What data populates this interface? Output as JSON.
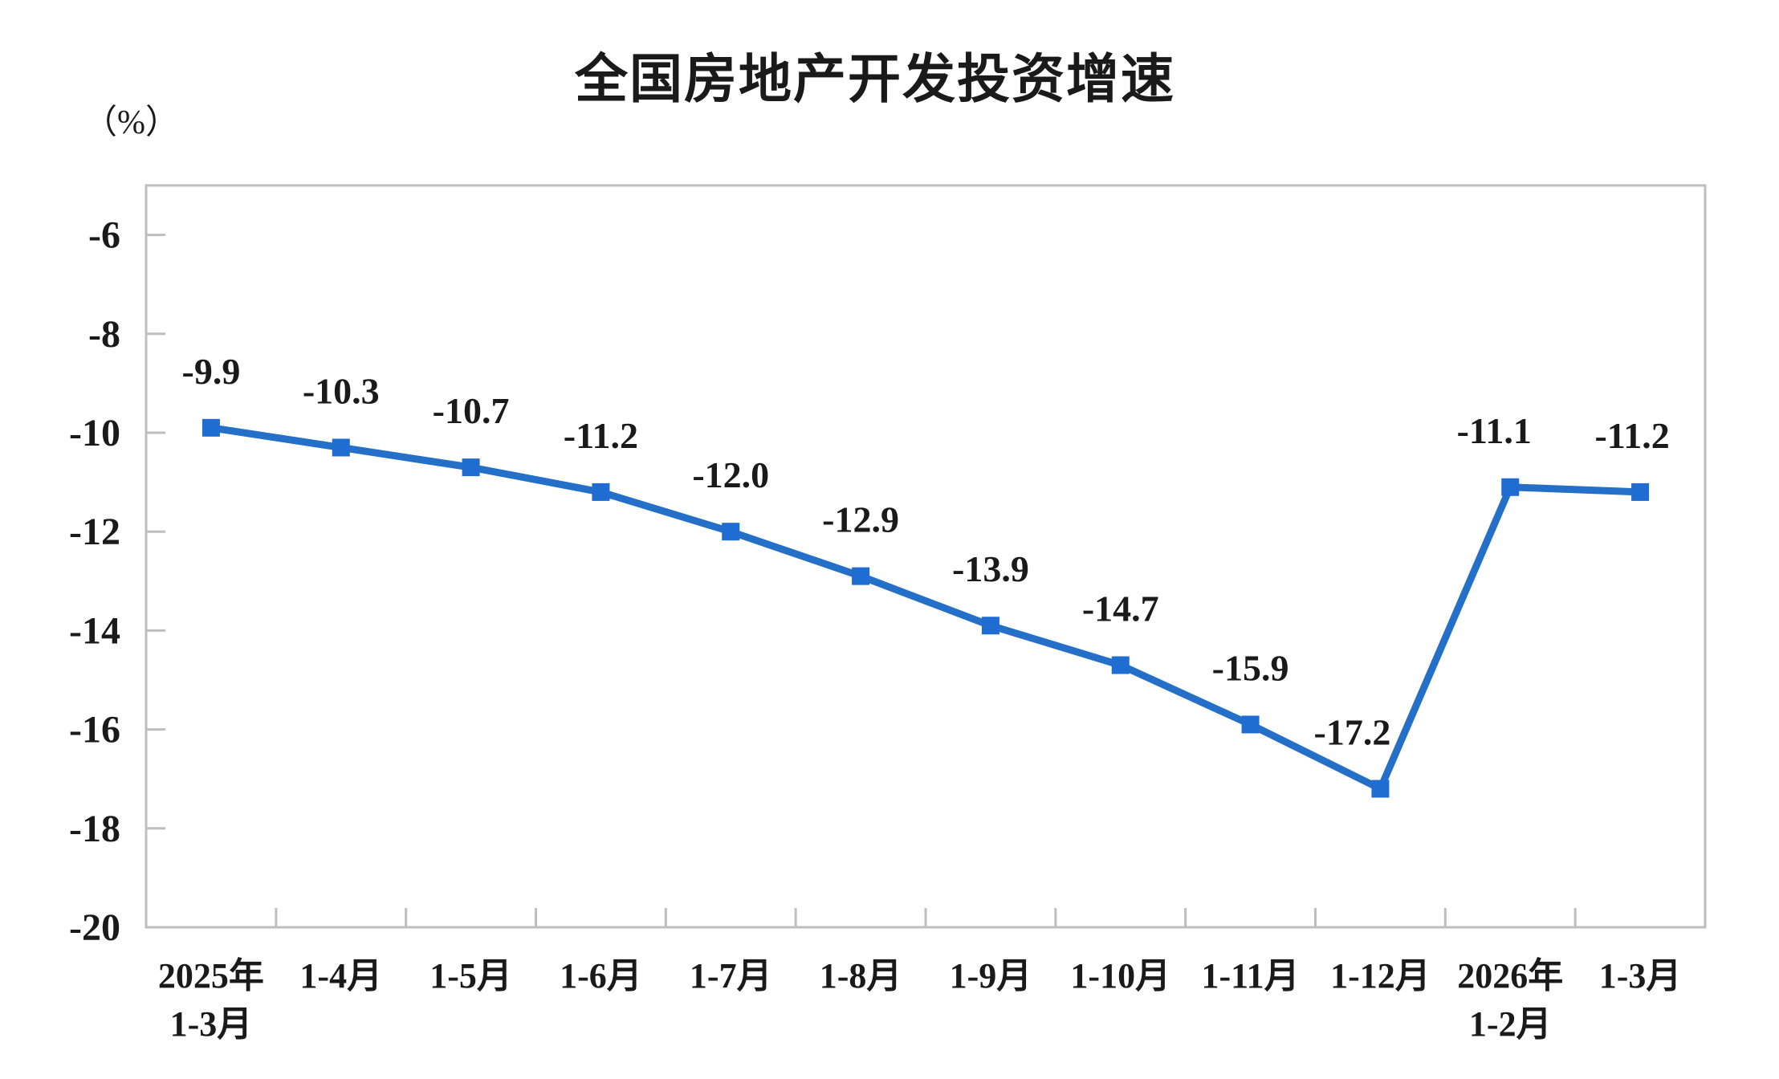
{
  "page": {
    "background": "#ffffff"
  },
  "chart_data": {
    "type": "line",
    "title": "全国房地产开发投资增速",
    "unit_label": "（%）",
    "categories": [
      [
        "2025年",
        "1-3月"
      ],
      [
        "1-4月"
      ],
      [
        "1-5月"
      ],
      [
        "1-6月"
      ],
      [
        "1-7月"
      ],
      [
        "1-8月"
      ],
      [
        "1-9月"
      ],
      [
        "1-10月"
      ],
      [
        "1-11月"
      ],
      [
        "1-12月"
      ],
      [
        "2026年",
        "1-2月"
      ],
      [
        "1-3月"
      ]
    ],
    "series": [
      {
        "name": "全国房地产开发投资增速",
        "values": [
          -9.9,
          -10.3,
          -10.7,
          -11.2,
          -12.0,
          -12.9,
          -13.9,
          -14.7,
          -15.9,
          -17.2,
          -11.1,
          -11.2
        ]
      }
    ],
    "data_labels": [
      "-9.9",
      "-10.3",
      "-10.7",
      "-11.2",
      "-12.0",
      "-12.9",
      "-13.9",
      "-14.7",
      "-15.9",
      "-17.2",
      "-11.1",
      "-11.2"
    ],
    "label_dx": [
      0,
      0,
      0,
      0,
      0,
      0,
      0,
      0,
      0,
      -35,
      -20,
      -10
    ],
    "y_ticks": [
      -6,
      -8,
      -10,
      -12,
      -14,
      -16,
      -18,
      -20
    ],
    "ylim": [
      -20,
      -5
    ],
    "xlabel": "",
    "ylabel": "（%）",
    "grid": false,
    "legend_position": "none",
    "marker": "square",
    "colors": {
      "line": "#2470C8",
      "marker": "#1F6DD2",
      "axis": "#BEBEBE",
      "text": "#1A1A1A"
    }
  }
}
